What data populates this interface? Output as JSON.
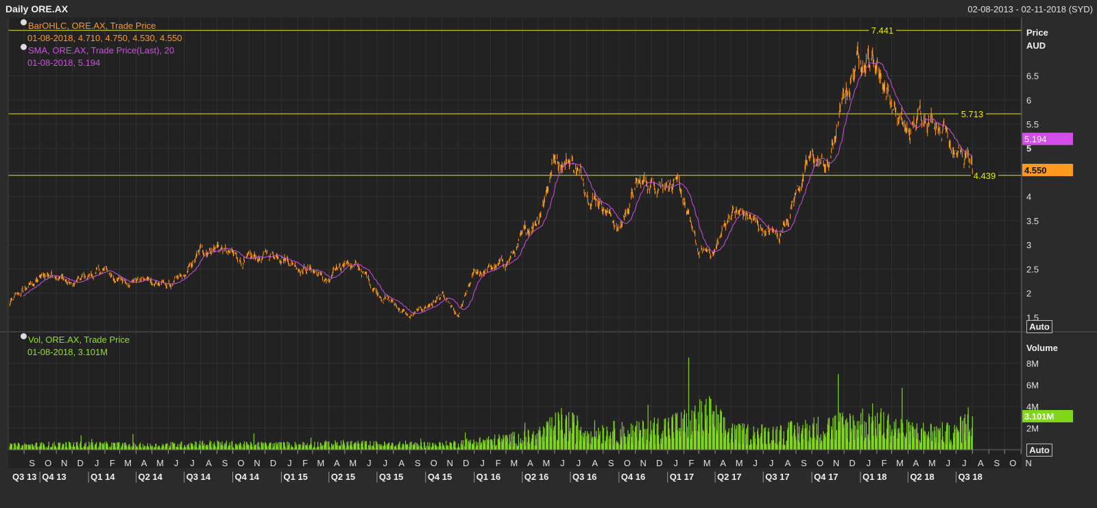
{
  "header": {
    "title": "Daily ORE.AX",
    "date_range": "02-08-2013 - 02-11-2018 (SYD)"
  },
  "legend": {
    "ohlc_name": "BarOHLC, ORE.AX, Trade Price",
    "ohlc_values": "01-08-2018, 4.710, 4.750, 4.530, 4.550",
    "sma_name": "SMA, ORE.AX, Trade Price(Last),  20",
    "sma_values": "01-08-2018, 5.194",
    "vol_name": "Vol, ORE.AX, Trade Price",
    "vol_values": "01-08-2018, 3.101M"
  },
  "buttons": {
    "auto_price": "Auto",
    "auto_volume": "Auto"
  },
  "colors": {
    "background": "#222222",
    "price": "#ff9a1f",
    "sma": "#d34ee8",
    "volume": "#7fd61a",
    "hline": "#e8e800",
    "grid": "#333333"
  },
  "chart_data": [
    {
      "type": "line",
      "title": "",
      "ylabel": "Price AUD",
      "ylabel_lines": [
        "Price",
        "AUD"
      ],
      "ylim": [
        1.2,
        7.7
      ],
      "yticks": [
        "1.5",
        "2",
        "2.5",
        "3",
        "3.5",
        "4",
        "4.5",
        "5",
        "5.5",
        "6",
        "6.5"
      ],
      "x_start": "2013-08-02",
      "x_end": "2018-11-02",
      "month_labels": [
        "S",
        "O",
        "N",
        "D",
        "J",
        "F",
        "M",
        "A",
        "M",
        "J",
        "J",
        "A",
        "S",
        "O",
        "N",
        "D",
        "J",
        "F",
        "M",
        "A",
        "M",
        "J",
        "J",
        "A",
        "S",
        "O",
        "N",
        "D",
        "J",
        "F",
        "M",
        "A",
        "M",
        "J",
        "J",
        "A",
        "S",
        "O",
        "N",
        "D",
        "J",
        "F",
        "M",
        "A",
        "M",
        "J",
        "J",
        "A",
        "S",
        "O",
        "N",
        "D",
        "J",
        "F",
        "M",
        "A",
        "M",
        "J",
        "J",
        "A",
        "S",
        "O",
        "N"
      ],
      "quarter_labels": [
        "Q3 13",
        "Q4 13",
        "Q1 14",
        "Q2 14",
        "Q3 14",
        "Q4 14",
        "Q1 15",
        "Q2 15",
        "Q3 15",
        "Q4 15",
        "Q1 16",
        "Q2 16",
        "Q3 16",
        "Q4 16",
        "Q1 17",
        "Q2 17",
        "Q3 17",
        "Q4 17",
        "Q1 18",
        "Q2 18",
        "Q3 18"
      ],
      "horizontal_lines": [
        {
          "value": 7.441,
          "label": "7.441"
        },
        {
          "value": 5.713,
          "label": "5.713"
        },
        {
          "value": 4.439,
          "label": "4.439"
        }
      ],
      "last_values": [
        {
          "label": "5.194",
          "value": 5.194,
          "series": "SMA"
        },
        {
          "label": "4.550",
          "value": 4.55,
          "series": "Price"
        }
      ],
      "series": [
        {
          "name": "BarOHLC, ORE.AX, Trade Price",
          "dates": [
            "2013-08-02",
            "2013-09-01",
            "2013-10-01",
            "2013-11-01",
            "2013-12-01",
            "2014-01-01",
            "2014-02-01",
            "2014-03-01",
            "2014-04-01",
            "2014-05-01",
            "2014-06-01",
            "2014-07-01",
            "2014-08-01",
            "2014-09-01",
            "2014-10-01",
            "2014-11-01",
            "2014-12-01",
            "2015-01-01",
            "2015-02-01",
            "2015-03-01",
            "2015-04-01",
            "2015-05-01",
            "2015-06-01",
            "2015-07-01",
            "2015-08-01",
            "2015-09-01",
            "2015-10-01",
            "2015-11-01",
            "2015-12-01",
            "2016-01-01",
            "2016-02-01",
            "2016-03-01",
            "2016-04-01",
            "2016-05-01",
            "2016-06-01",
            "2016-07-01",
            "2016-08-01",
            "2016-09-01",
            "2016-10-01",
            "2016-11-01",
            "2016-12-01",
            "2017-01-01",
            "2017-02-01",
            "2017-03-01",
            "2017-04-01",
            "2017-05-01",
            "2017-06-01",
            "2017-07-01",
            "2017-08-01",
            "2017-09-01",
            "2017-10-01",
            "2017-11-01",
            "2017-12-01",
            "2018-01-01",
            "2018-02-01",
            "2018-03-01",
            "2018-04-01",
            "2018-05-01",
            "2018-06-01",
            "2018-07-01",
            "2018-08-01"
          ],
          "values": [
            1.75,
            2.05,
            2.3,
            2.45,
            2.15,
            2.35,
            2.45,
            2.25,
            2.3,
            2.25,
            2.15,
            2.3,
            2.85,
            3.0,
            2.75,
            2.65,
            2.75,
            2.85,
            2.6,
            2.5,
            2.2,
            2.7,
            2.45,
            2.05,
            1.8,
            1.5,
            1.7,
            1.95,
            1.45,
            2.4,
            2.5,
            2.6,
            3.1,
            3.6,
            4.8,
            4.8,
            4.2,
            3.9,
            3.3,
            4.2,
            4.3,
            4.4,
            3.9,
            2.8,
            2.9,
            3.7,
            3.6,
            3.3,
            3.2,
            4.1,
            4.8,
            4.6,
            6.0,
            7.0,
            6.8,
            6.0,
            5.2,
            5.8,
            5.6,
            5.1,
            4.55
          ]
        },
        {
          "name": "SMA, ORE.AX, Trade Price(Last),  20",
          "period": 20
        }
      ]
    },
    {
      "type": "bar",
      "title": "",
      "ylabel": "Volume",
      "yticks": [
        "2M",
        "4M",
        "6M",
        "8M"
      ],
      "ylim": [
        0,
        10.9
      ],
      "unit": "M",
      "last_value": {
        "label": "3.101M",
        "value": 3.101
      },
      "series": [
        {
          "name": "Vol, ORE.AX, Trade Price",
          "dates": [
            "2013-08-02",
            "2013-11-01",
            "2014-02-01",
            "2014-05-01",
            "2014-08-01",
            "2014-11-01",
            "2015-02-01",
            "2015-05-01",
            "2015-08-01",
            "2015-11-01",
            "2016-02-01",
            "2016-05-01",
            "2016-06-15",
            "2016-08-01",
            "2016-11-01",
            "2017-02-01",
            "2017-03-20",
            "2017-05-01",
            "2017-08-01",
            "2017-11-01",
            "2018-01-25",
            "2018-04-01",
            "2018-07-01",
            "2018-08-01"
          ],
          "values_millions": [
            0.4,
            0.5,
            0.5,
            0.4,
            0.6,
            0.5,
            0.5,
            0.6,
            0.5,
            0.5,
            0.9,
            1.3,
            2.6,
            1.8,
            1.7,
            2.5,
            3.4,
            1.6,
            1.6,
            2.2,
            2.8,
            1.8,
            1.6,
            3.101
          ]
        }
      ]
    }
  ]
}
